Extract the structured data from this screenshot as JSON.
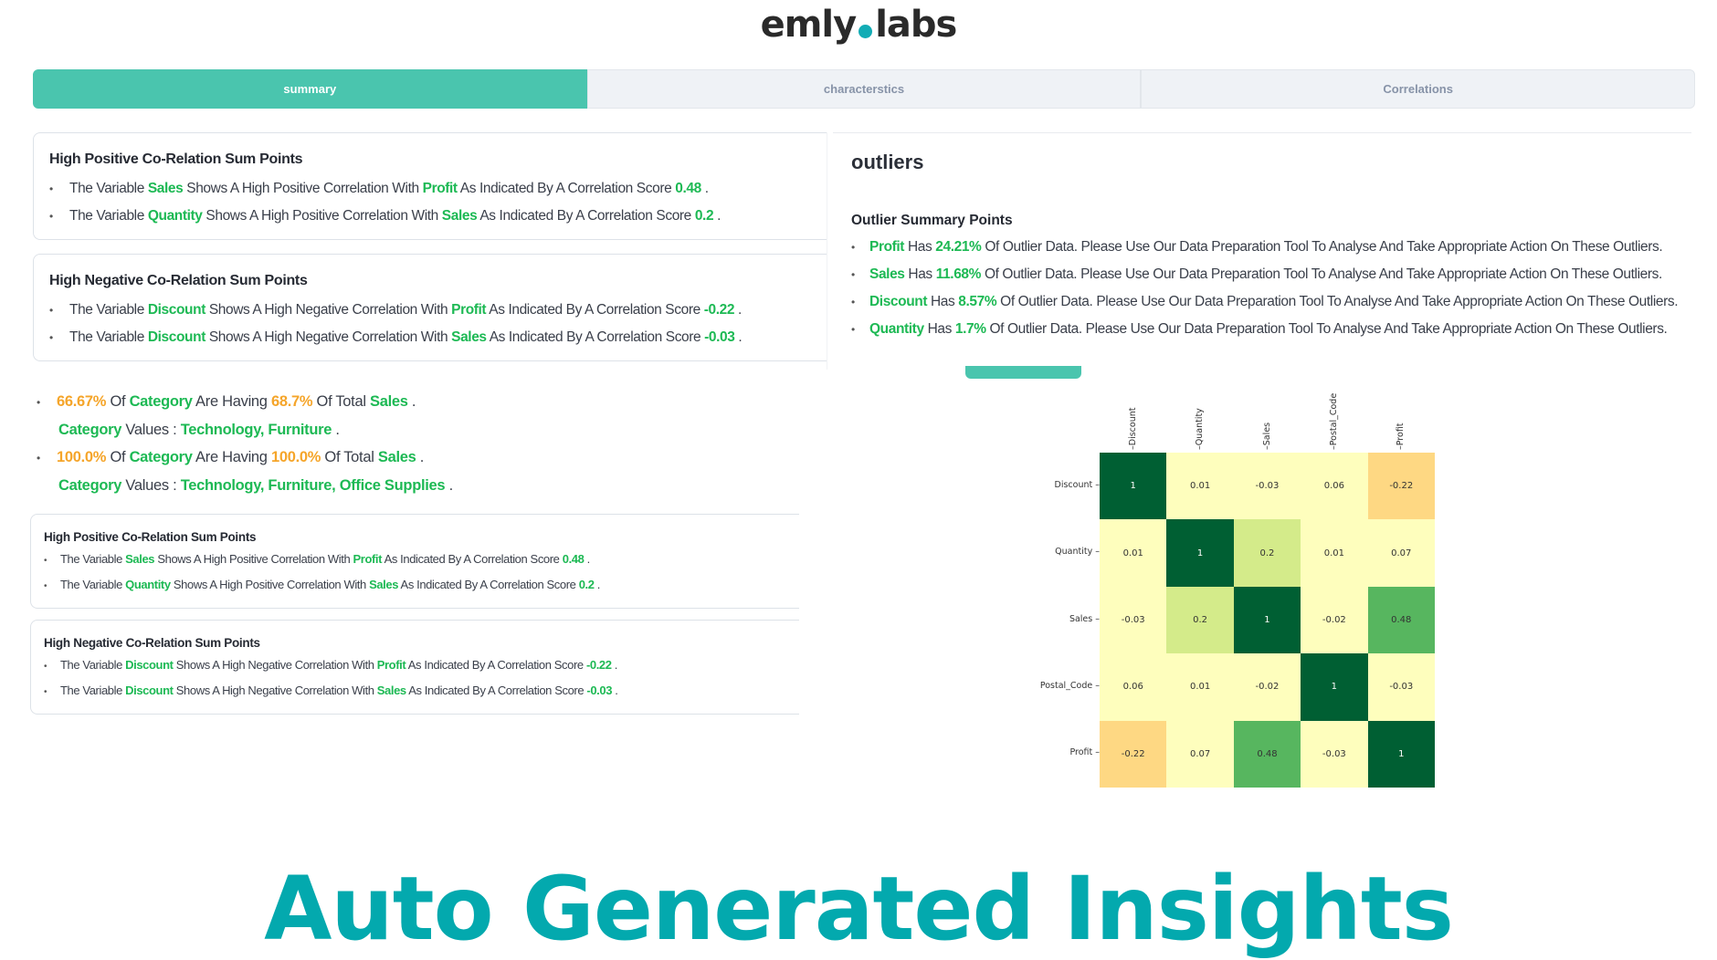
{
  "logo": {
    "left": "emly",
    "right": "labs"
  },
  "tabs": [
    {
      "label": "summary",
      "active": true
    },
    {
      "label": "characterstics",
      "active": false
    },
    {
      "label": "Correlations",
      "active": false
    }
  ],
  "positive_card": {
    "title": "High Positive Co-Relation Sum Points",
    "items": [
      {
        "pre": "The Variable ",
        "var": "Sales",
        "mid": " Shows A High Positive Correlation With ",
        "target": "Profit",
        "post": " As Indicated By A Correlation Score ",
        "score": "0.48",
        "end": " ."
      },
      {
        "pre": "The Variable ",
        "var": "Quantity",
        "mid": " Shows A High Positive Correlation With ",
        "target": "Sales",
        "post": " As Indicated By A Correlation Score ",
        "score": "0.2",
        "end": " ."
      }
    ]
  },
  "negative_card": {
    "title": "High Negative Co-Relation Sum Points",
    "items": [
      {
        "pre": "The Variable ",
        "var": "Discount",
        "mid": " Shows A High Negative Correlation With ",
        "target": "Profit",
        "post": " As Indicated By A Correlation Score ",
        "score": "-0.22",
        "end": " ."
      },
      {
        "pre": "The Variable ",
        "var": "Discount",
        "mid": " Shows A High Negative Correlation With ",
        "target": "Sales",
        "post": " As Indicated By A Correlation Score ",
        "score": "-0.03",
        "end": " ."
      }
    ]
  },
  "category_points": [
    {
      "pct": "66.67%",
      "of": " Of ",
      "field": "Category",
      "having": " Are Having ",
      "share": "68.7%",
      "total": " Of Total ",
      "measure": "Sales",
      "end": " .",
      "values_label": "Category",
      "values_sep": " Values : ",
      "values": "Technology, Furniture",
      "values_end": " ."
    },
    {
      "pct": "100.0%",
      "of": " Of ",
      "field": "Category",
      "having": " Are Having ",
      "share": "100.0%",
      "total": " Of Total ",
      "measure": "Sales",
      "end": " .",
      "values_label": "Category",
      "values_sep": " Values : ",
      "values": "Technology, Furniture, Office Supplies",
      "values_end": " ."
    }
  ],
  "outliers": {
    "title": "outliers",
    "subtitle": "Outlier Summary Points",
    "items": [
      {
        "var": "Profit",
        "has": " Has ",
        "pct": "24.21%",
        "text": " Of Outlier Data. Please Use Our Data Preparation Tool To Analyse And Take Appropriate Action On These Outliers."
      },
      {
        "var": "Sales",
        "has": " Has ",
        "pct": "11.68%",
        "text": " Of Outlier Data. Please Use Our Data Preparation Tool To Analyse And Take Appropriate Action On These Outliers."
      },
      {
        "var": "Discount",
        "has": " Has ",
        "pct": "8.57%",
        "text": " Of Outlier Data. Please Use Our Data Preparation Tool To Analyse And Take Appropriate Action On These Outliers."
      },
      {
        "var": "Quantity",
        "has": " Has ",
        "pct": "1.7%",
        "text": " Of Outlier Data. Please Use Our Data Preparation Tool To Analyse And Take Appropriate Action On These Outliers."
      }
    ]
  },
  "chart_data": {
    "type": "heatmap",
    "title": "",
    "x": [
      "Discount",
      "Quantity",
      "Sales",
      "Postal_Code",
      "Profit"
    ],
    "y": [
      "Discount",
      "Quantity",
      "Sales",
      "Postal_Code",
      "Profit"
    ],
    "values": [
      [
        1,
        0.01,
        -0.03,
        0.06,
        -0.22
      ],
      [
        0.01,
        1,
        0.2,
        0.01,
        0.07
      ],
      [
        -0.03,
        0.2,
        1,
        -0.02,
        0.48
      ],
      [
        0.06,
        0.01,
        -0.02,
        1,
        -0.03
      ],
      [
        -0.22,
        0.07,
        0.48,
        -0.03,
        1
      ]
    ],
    "colormap": "RdYlGn"
  },
  "headline": "Auto Generated Insights",
  "colors": {
    "teal": "#4ac5ae",
    "brand": "#03a9ae",
    "green": "#1db954",
    "orange": "#f5a52a"
  }
}
